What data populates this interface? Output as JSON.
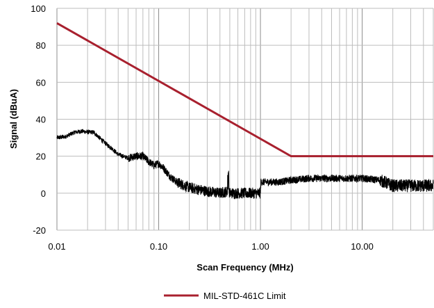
{
  "chart_data": {
    "type": "line",
    "title": "",
    "xlabel": "Scan Frequency (MHz)",
    "ylabel": "Signal (dBuA)",
    "xscale": "log",
    "xlim": [
      0.01,
      50
    ],
    "ylim": [
      -20,
      100
    ],
    "grid": true,
    "legend_position": "bottom-center",
    "x_ticks": [
      0.01,
      0.1,
      1,
      10
    ],
    "x_tick_labels": [
      "0.01",
      "0.10",
      "1.00",
      "10.00"
    ],
    "y_ticks": [
      -20,
      0,
      20,
      40,
      60,
      80,
      100
    ],
    "y_tick_labels": [
      "-20",
      "0",
      "20",
      "40",
      "60",
      "80",
      "100"
    ],
    "series": [
      {
        "name": "MIL-STD-461C Limit",
        "color": "#a8202e",
        "x": [
          0.01,
          2,
          50
        ],
        "y": [
          92,
          20,
          20
        ]
      },
      {
        "color": "#000000",
        "style": "noisy",
        "x": [
          0.01,
          0.012,
          0.015,
          0.018,
          0.02,
          0.023,
          0.025,
          0.03,
          0.035,
          0.04,
          0.05,
          0.06,
          0.07,
          0.08,
          0.09,
          0.1,
          0.11,
          0.13,
          0.15,
          0.2,
          0.3,
          0.4,
          0.48,
          0.5,
          0.6,
          0.8,
          1.0,
          1.01,
          1.5,
          2,
          3,
          5,
          7,
          10,
          15,
          20,
          30,
          50
        ],
        "y": [
          30,
          30.5,
          33,
          33.5,
          33,
          33,
          31,
          27,
          24,
          21,
          19,
          20,
          20,
          17,
          15,
          16,
          14,
          9,
          6,
          3,
          1,
          0,
          1,
          0,
          0,
          0,
          0,
          6,
          6,
          7,
          8,
          8,
          8,
          8,
          7,
          4,
          4,
          4
        ]
      }
    ]
  }
}
